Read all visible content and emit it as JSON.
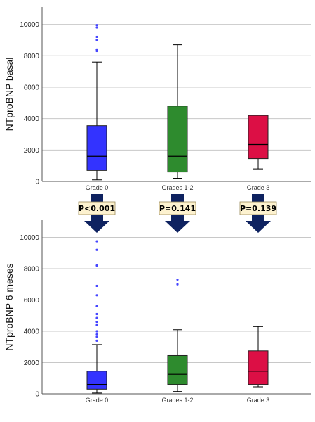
{
  "chart_data": [
    {
      "type": "box",
      "ylabel": "NTproBNP basal",
      "ylim": [
        0,
        11100
      ],
      "yticks": [
        0,
        2000,
        4000,
        6000,
        8000,
        10000
      ],
      "grid": "horizontal",
      "categories": [
        "Grade 0",
        "Grades 1-2",
        "Grade 3"
      ],
      "series": [
        {
          "category": "Grade 0",
          "color": "#3333ff",
          "min": 100,
          "q1": 700,
          "median": 1600,
          "q3": 3550,
          "max": 7600,
          "outliers": [
            8300,
            8400,
            9000,
            9200,
            9800,
            9950
          ]
        },
        {
          "category": "Grades 1-2",
          "color": "#2e8b2e",
          "min": 200,
          "q1": 600,
          "median": 1600,
          "q3": 4800,
          "max": 8700,
          "outliers": []
        },
        {
          "category": "Grade 3",
          "color": "#dc0f45",
          "min": 800,
          "q1": 1450,
          "median": 2350,
          "q3": 4200,
          "max": 4200,
          "outliers": []
        }
      ]
    },
    {
      "type": "box",
      "ylabel": "NTproBNP 6 meses",
      "ylim": [
        0,
        11100
      ],
      "yticks": [
        0,
        2000,
        4000,
        6000,
        8000,
        10000
      ],
      "grid": "horizontal",
      "categories": [
        "Grade 0",
        "Grades 1-2",
        "Grade 3"
      ],
      "series": [
        {
          "category": "Grade 0",
          "color": "#3333ff",
          "min": 50,
          "q1": 300,
          "median": 600,
          "q3": 1450,
          "max": 3150,
          "outliers": [
            3400,
            3650,
            3800,
            4000,
            4400,
            4600,
            4850,
            5100,
            5600,
            6300,
            6900,
            8200,
            9200,
            9750
          ]
        },
        {
          "category": "Grades 1-2",
          "color": "#2e8b2e",
          "min": 150,
          "q1": 600,
          "median": 1250,
          "q3": 2450,
          "max": 4100,
          "outliers": [
            7000,
            7300
          ]
        },
        {
          "category": "Grade 3",
          "color": "#dc0f45",
          "min": 450,
          "q1": 600,
          "median": 1450,
          "q3": 2750,
          "max": 4300,
          "outliers": []
        }
      ]
    }
  ],
  "pvalues": [
    "P<0.001",
    "P=0.141",
    "P=0.139"
  ],
  "arrow_color": "#0e2260",
  "pbox_fill": "#fdf2cf",
  "grid_color": "#c8c8c8",
  "outlier_color": "#4545ff"
}
